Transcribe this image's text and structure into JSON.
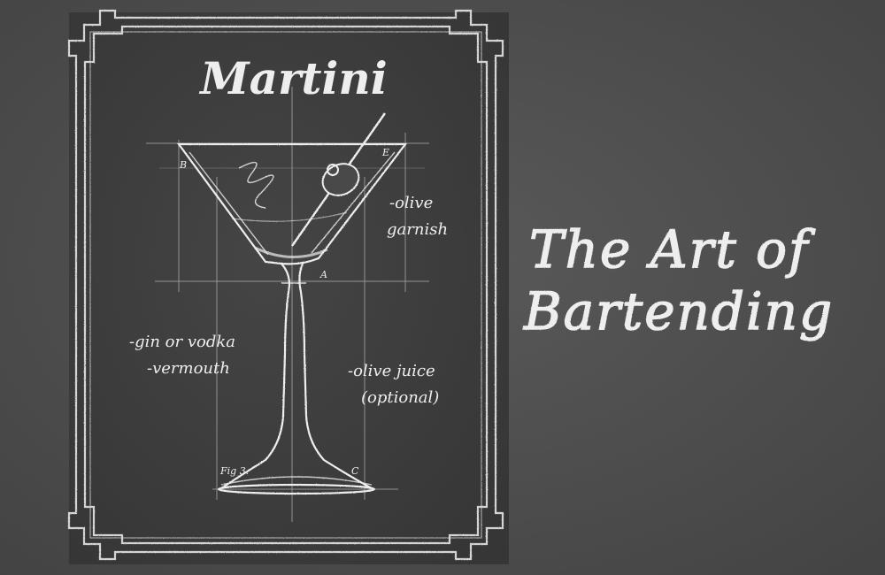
{
  "poster": {
    "title": "Martini",
    "notes": {
      "olive_garnish_1": "-olive",
      "olive_garnish_2": "garnish",
      "spirit": "-gin or vodka",
      "vermouth": "-vermouth",
      "juice_1": "-olive juice",
      "juice_2": "(optional)"
    },
    "labels": {
      "b": "B",
      "e": "E",
      "a": "A",
      "c": "C",
      "fig": "Fig 3."
    }
  },
  "headline": {
    "line1": "The Art of",
    "line2": "Bartending"
  },
  "colors": {
    "board": "#4d4d4d",
    "chalk": "#eeeeee",
    "panel": "#3f3f3f"
  }
}
